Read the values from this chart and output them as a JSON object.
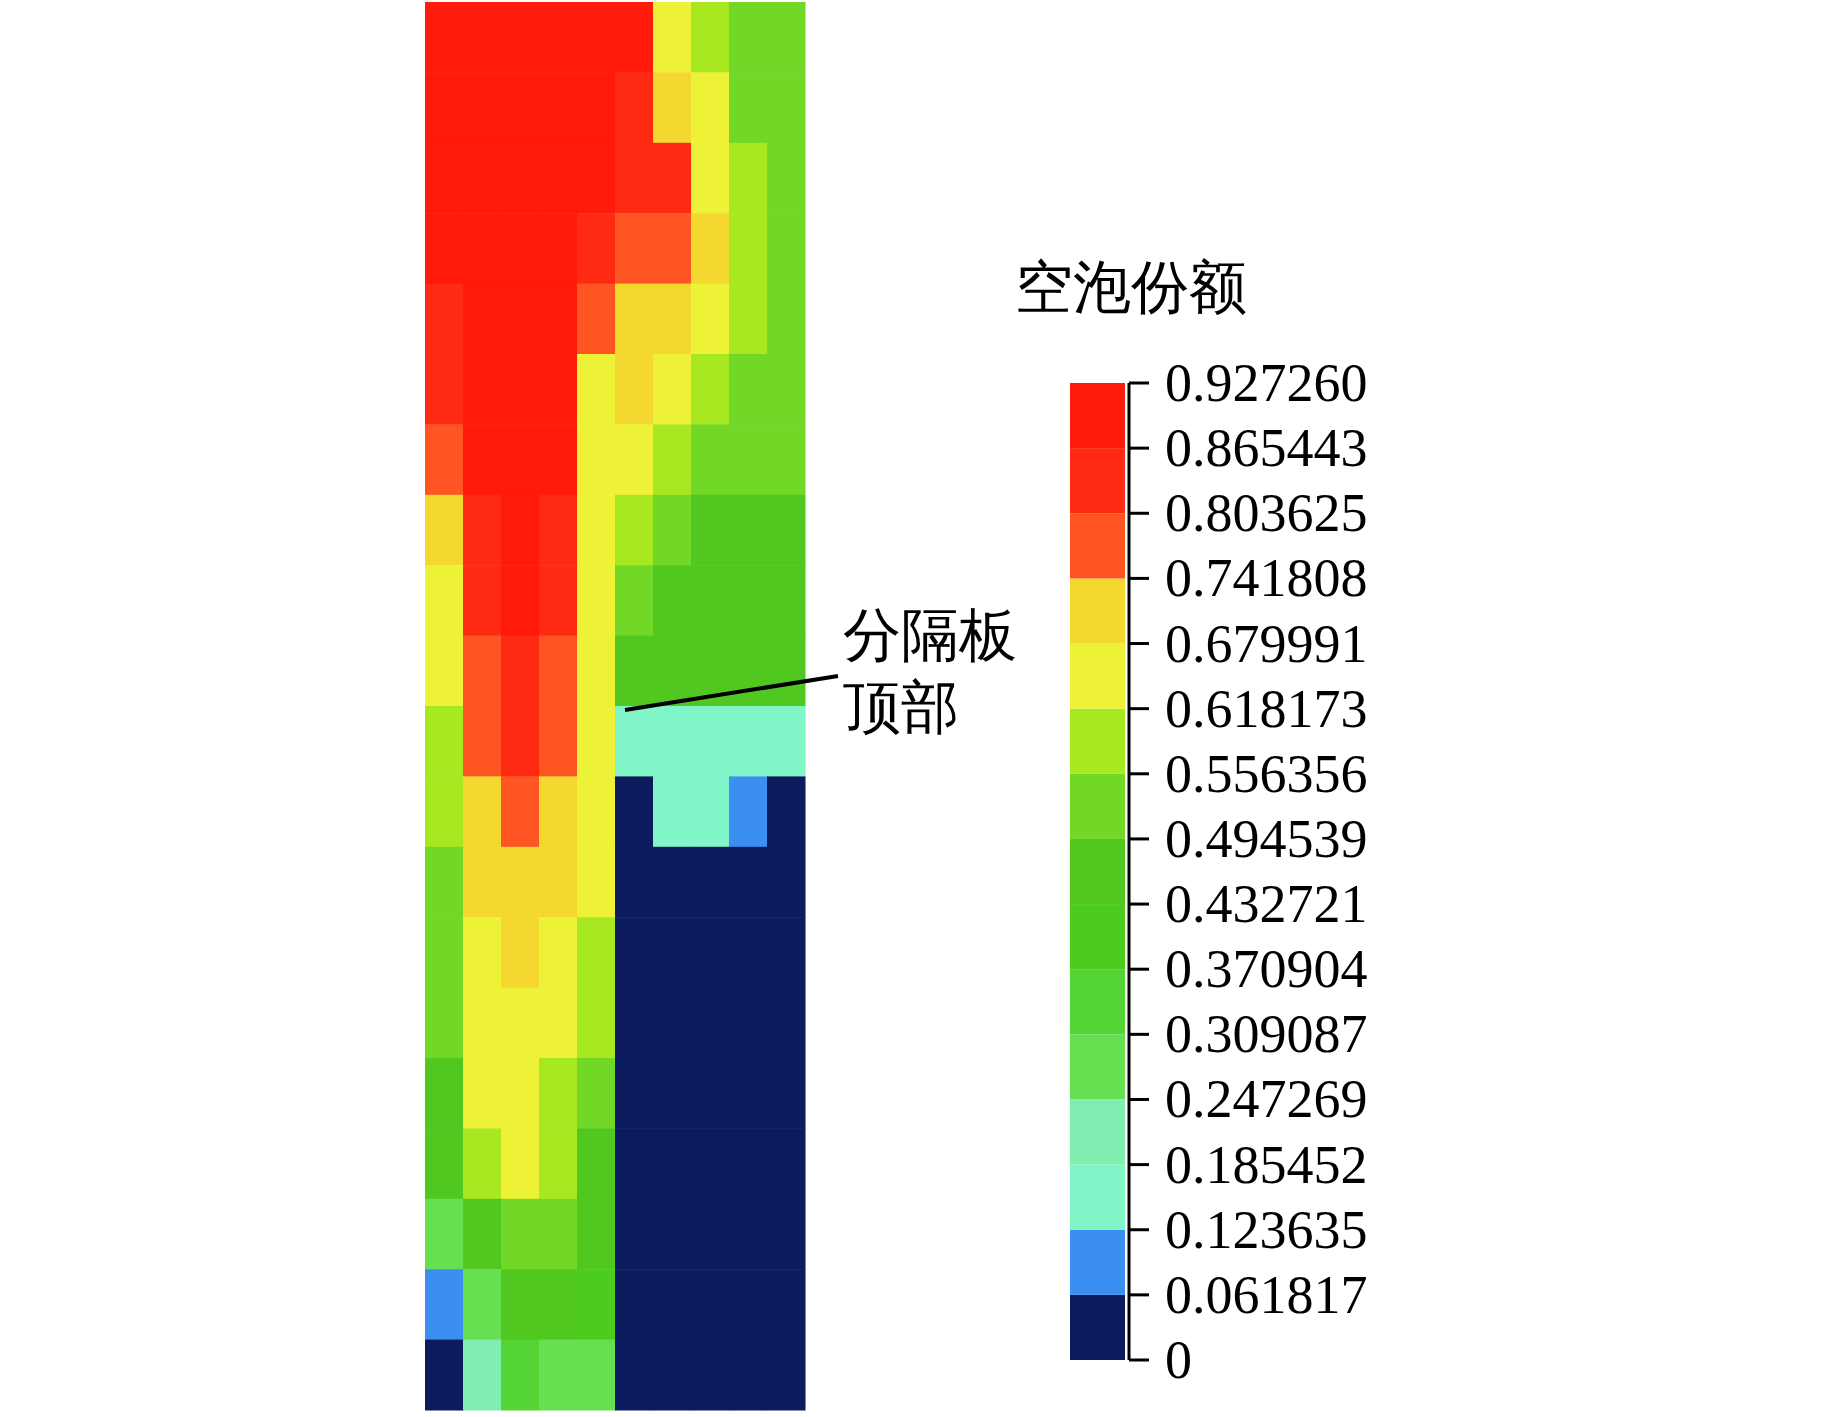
{
  "chart_data": {
    "type": "heatmap",
    "clabel": "空泡份额",
    "annotations": [
      "分隔板顶部"
    ],
    "categories": [
      null,
      null,
      null,
      null,
      null,
      null,
      null,
      null,
      null,
      null
    ],
    "y_categories": [
      null,
      null,
      null,
      null,
      null,
      null,
      null,
      null,
      null,
      null,
      null,
      null,
      null,
      null,
      null,
      null,
      null,
      null,
      null,
      null
    ],
    "cells": [
      [
        0.9,
        0.9,
        0.9,
        0.9,
        0.9,
        0.9,
        0.65,
        0.59,
        0.53,
        0.53
      ],
      [
        0.9,
        0.9,
        0.9,
        0.9,
        0.9,
        0.83,
        0.71,
        0.65,
        0.53,
        0.53
      ],
      [
        0.9,
        0.9,
        0.9,
        0.9,
        0.9,
        0.83,
        0.83,
        0.65,
        0.59,
        0.53
      ],
      [
        0.9,
        0.9,
        0.9,
        0.9,
        0.83,
        0.77,
        0.77,
        0.71,
        0.59,
        0.53
      ],
      [
        0.83,
        0.9,
        0.9,
        0.9,
        0.77,
        0.71,
        0.71,
        0.65,
        0.59,
        0.53
      ],
      [
        0.83,
        0.9,
        0.9,
        0.9,
        0.65,
        0.71,
        0.65,
        0.59,
        0.53,
        0.53
      ],
      [
        0.77,
        0.9,
        0.9,
        0.9,
        0.65,
        0.65,
        0.59,
        0.53,
        0.53,
        0.53
      ],
      [
        0.71,
        0.83,
        0.9,
        0.83,
        0.65,
        0.59,
        0.53,
        0.46,
        0.46,
        0.46
      ],
      [
        0.65,
        0.83,
        0.9,
        0.83,
        0.65,
        0.53,
        0.46,
        0.46,
        0.46,
        0.46
      ],
      [
        0.65,
        0.77,
        0.83,
        0.77,
        0.65,
        0.46,
        0.46,
        0.46,
        0.46,
        0.46
      ],
      [
        0.59,
        0.77,
        0.83,
        0.77,
        0.65,
        0.15,
        0.15,
        0.15,
        0.15,
        0.15
      ],
      [
        0.59,
        0.71,
        0.77,
        0.71,
        0.65,
        0.03,
        0.15,
        0.15,
        0.09,
        0.03
      ],
      [
        0.53,
        0.71,
        0.71,
        0.71,
        0.65,
        0.03,
        0.03,
        0.03,
        0.03,
        0.03
      ],
      [
        0.53,
        0.65,
        0.71,
        0.65,
        0.59,
        0.03,
        0.03,
        0.03,
        0.03,
        0.03
      ],
      [
        0.53,
        0.65,
        0.65,
        0.65,
        0.59,
        0.03,
        0.03,
        0.03,
        0.03,
        0.03
      ],
      [
        0.46,
        0.65,
        0.65,
        0.59,
        0.53,
        0.03,
        0.03,
        0.03,
        0.03,
        0.03
      ],
      [
        0.46,
        0.59,
        0.65,
        0.59,
        0.46,
        0.03,
        0.03,
        0.03,
        0.03,
        0.03
      ],
      [
        0.28,
        0.46,
        0.53,
        0.53,
        0.46,
        0.03,
        0.03,
        0.03,
        0.03,
        0.03
      ],
      [
        0.09,
        0.28,
        0.46,
        0.46,
        0.4,
        0.03,
        0.03,
        0.03,
        0.03,
        0.03
      ],
      [
        0.03,
        0.22,
        0.34,
        0.28,
        0.28,
        0.03,
        0.03,
        0.03,
        0.03,
        0.03
      ]
    ],
    "clim": [
      0,
      0.92726
    ],
    "cticks": [
      {
        "value": 0.92726,
        "label": "0.927260"
      },
      0.865443,
      0.803625,
      0.741808,
      0.679991,
      0.618173,
      0.556356,
      0.494539,
      0.432721,
      0.370904,
      0.309087,
      0.247269,
      0.185452,
      0.123635,
      0.061817,
      0
    ]
  }
}
